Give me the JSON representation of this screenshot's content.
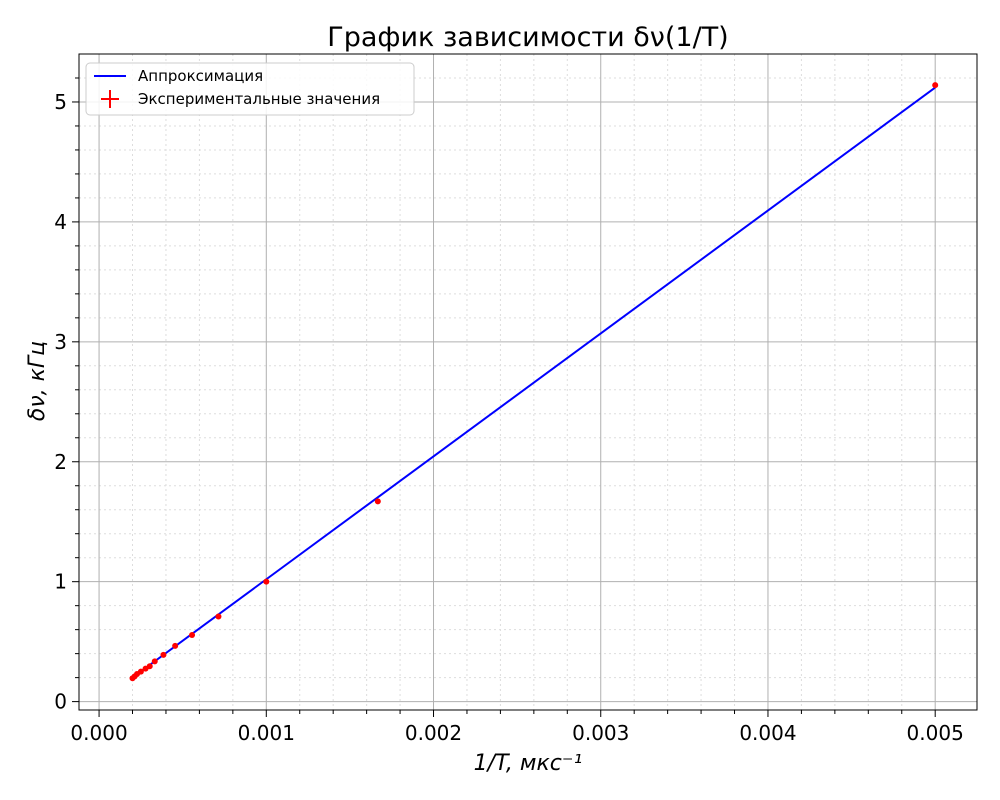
{
  "chart_data": {
    "type": "line",
    "title": "График зависимости δν(1/T)",
    "xlabel": "1/T, мкс⁻¹",
    "ylabel": "δν, кГц",
    "xlim": [
      -0.00012,
      0.00525
    ],
    "ylim": [
      -0.07,
      5.4
    ],
    "xticks": [
      0.0,
      0.001,
      0.002,
      0.003,
      0.004,
      0.005
    ],
    "xtick_labels": [
      "0.000",
      "0.001",
      "0.002",
      "0.003",
      "0.004",
      "0.005"
    ],
    "yticks": [
      0,
      1,
      2,
      3,
      4,
      5
    ],
    "ytick_labels": [
      "0",
      "1",
      "2",
      "3",
      "4",
      "5"
    ],
    "grid": {
      "major": true,
      "minor": true
    },
    "legend_position": "top-left",
    "series": [
      {
        "name": "Аппроксимация",
        "kind": "line",
        "color": "#0000ff",
        "x": [
          0.0002,
          0.005
        ],
        "y": [
          0.2,
          5.12
        ]
      },
      {
        "name": "Экспериментальные значения",
        "kind": "scatter",
        "color": "#ff0000",
        "x": [
          0.0002,
          0.000213,
          0.000227,
          0.00025,
          0.000278,
          0.000303,
          0.000333,
          0.000385,
          0.000455,
          0.000556,
          0.000714,
          0.001,
          0.001667,
          0.005
        ],
        "y": [
          0.195,
          0.21,
          0.23,
          0.25,
          0.275,
          0.295,
          0.335,
          0.39,
          0.465,
          0.555,
          0.71,
          1.0,
          1.67,
          5.14
        ]
      }
    ]
  }
}
